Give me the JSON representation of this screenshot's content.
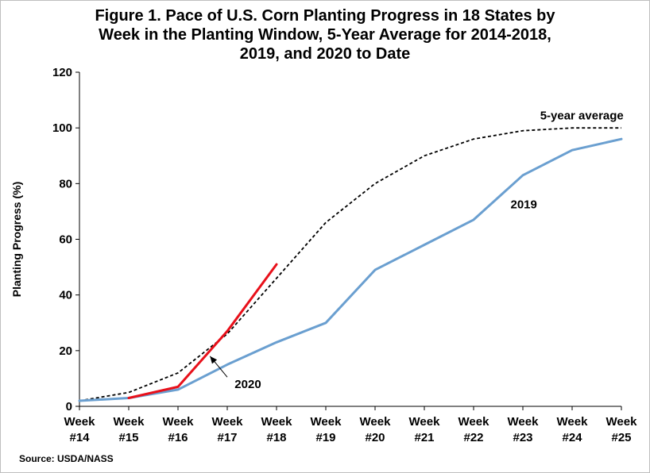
{
  "chart_data": {
    "type": "line",
    "title_lines": [
      "Figure 1.  Pace of U.S. Corn Planting Progress in 18 States by",
      "Week in the Planting Window, 5-Year Average for 2014-2018,",
      "2019, and 2020 to Date"
    ],
    "ylabel": "Planting Progress (%)",
    "xlabel": "",
    "categories": [
      [
        "Week",
        "#14"
      ],
      [
        "Week",
        "#15"
      ],
      [
        "Week",
        "#16"
      ],
      [
        "Week",
        "#17"
      ],
      [
        "Week",
        "#18"
      ],
      [
        "Week",
        "#19"
      ],
      [
        "Week",
        "#20"
      ],
      [
        "Week",
        "#21"
      ],
      [
        "Week",
        "#22"
      ],
      [
        "Week",
        "#23"
      ],
      [
        "Week",
        "#24"
      ],
      [
        "Week",
        "#25"
      ]
    ],
    "ylim": [
      0,
      120
    ],
    "yticks": [
      "0",
      "20",
      "40",
      "60",
      "80",
      "100",
      "120"
    ],
    "grid": false,
    "series": [
      {
        "name": "5-year average",
        "color": "#000000",
        "style": "dashed",
        "values": [
          2,
          5,
          12,
          26,
          46,
          66,
          80,
          90,
          96,
          99,
          100,
          100
        ]
      },
      {
        "name": "2019",
        "color": "#6a9fd0",
        "style": "solid",
        "values": [
          2,
          3,
          6,
          15,
          23,
          30,
          49,
          58,
          67,
          83,
          92,
          96
        ]
      },
      {
        "name": "2020",
        "color": "#e8101a",
        "style": "solid",
        "values": [
          null,
          3,
          7,
          27,
          51,
          null,
          null,
          null,
          null,
          null,
          null,
          null
        ]
      }
    ],
    "annotations": {
      "avg_label": "5-year average",
      "y2019_label": "2019",
      "y2020_label": "2020"
    },
    "source": "Source: USDA/NASS"
  }
}
